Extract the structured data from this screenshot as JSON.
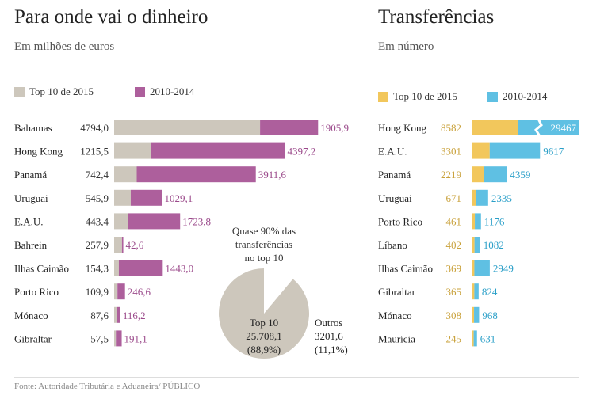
{
  "left": {
    "title": "Para onde vai o dinheiro",
    "subtitle": "Em milhões de euros",
    "legend": [
      "Top 10 de 2015",
      "2010-2014"
    ]
  },
  "right": {
    "title": "Transferências",
    "subtitle": "Em número",
    "legend": [
      "Top 10 de 2015",
      "2010-2014"
    ]
  },
  "annotation": {
    "line1": "Quase 90% das",
    "line2": "transferências",
    "line3": "no top 10"
  },
  "pie_labels": {
    "top_label": "Top 10",
    "top_value": "25.708,1",
    "top_pct": "(88,9%)",
    "others_label": "Outros",
    "others_value": "3201,6",
    "others_pct": "(11,1%)"
  },
  "source": "Fonte: Autoridade Tributária e Aduaneira/ PÚBLICO",
  "colors": {
    "gray": "#cdc7bc",
    "purple": "#ad5f9c",
    "purple_text": "#9b4a8b",
    "yellow": "#f2c75c",
    "yellow_text": "#c9a13a",
    "blue": "#5fc0e3",
    "blue_text": "#2a9fc8"
  },
  "chart_data": [
    {
      "type": "bar",
      "title": "Para onde vai o dinheiro",
      "ylabel": "Em milhões de euros",
      "categories": [
        "Bahamas",
        "Hong Kong",
        "Panamá",
        "Uruguai",
        "E.A.U.",
        "Bahrein",
        "Ilhas Caimão",
        "Porto Rico",
        "Mónaco",
        "Gibraltar"
      ],
      "series": [
        {
          "name": "Top 10 de 2015",
          "values": [
            4794.0,
            1215.5,
            742.4,
            545.9,
            443.4,
            257.9,
            154.3,
            109.9,
            87.6,
            57.5
          ],
          "labels": [
            "4794,0",
            "1215,5",
            "742,4",
            "545,9",
            "443,4",
            "257,9",
            "154,3",
            "109,9",
            "87,6",
            "57,5"
          ]
        },
        {
          "name": "2010-2014",
          "values": [
            1905.9,
            4397.2,
            3911.6,
            1029.1,
            1723.8,
            42.6,
            1443.0,
            246.6,
            116.2,
            191.1
          ],
          "labels": [
            "1905,9",
            "4397,2",
            "3911,6",
            "1029,1",
            "1723,8",
            "42,6",
            "1443,0",
            "246,6",
            "116,2",
            "191,1"
          ]
        }
      ],
      "stacked": true
    },
    {
      "type": "pie",
      "labels": [
        "Top 10",
        "Outros"
      ],
      "values": [
        25708.1,
        3201.6
      ],
      "percent": [
        88.9,
        11.1
      ]
    },
    {
      "type": "bar",
      "title": "Transferências",
      "ylabel": "Em número",
      "categories": [
        "Hong Kong",
        "E.A.U.",
        "Panamá",
        "Uruguai",
        "Porto Rico",
        "Líbano",
        "Ilhas Caimão",
        "Gibraltar",
        "Mónaco",
        "Maurícia"
      ],
      "series": [
        {
          "name": "Top 10 de 2015",
          "values": [
            8582,
            3301,
            2219,
            671,
            461,
            402,
            369,
            365,
            308,
            245
          ]
        },
        {
          "name": "2010-2014",
          "values": [
            29467,
            9617,
            4359,
            2335,
            1176,
            1082,
            2949,
            824,
            968,
            631
          ]
        }
      ],
      "stacked": true,
      "axis_break_on": "Hong Kong"
    }
  ]
}
